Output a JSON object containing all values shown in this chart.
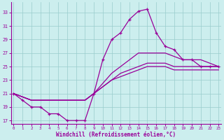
{
  "xlabel": "Windchill (Refroidissement éolien,°C)",
  "hours": [
    0,
    1,
    2,
    3,
    4,
    5,
    6,
    7,
    8,
    9,
    10,
    11,
    12,
    13,
    14,
    15,
    16,
    17,
    18,
    19,
    20,
    21,
    22,
    23
  ],
  "line_main": [
    21,
    20,
    19,
    19,
    18,
    18,
    17,
    17,
    17,
    21,
    26,
    29,
    30,
    32,
    33.2,
    33.5,
    30,
    28,
    27.5,
    26,
    26,
    25,
    25,
    25
  ],
  "line_smooth_hi": [
    21,
    20.5,
    20,
    20,
    20,
    20,
    20,
    20,
    20,
    21,
    22.5,
    24,
    25,
    26,
    27,
    27,
    27,
    27,
    26.5,
    26,
    26,
    26,
    25.5,
    25
  ],
  "line_smooth_mid": [
    21,
    20.5,
    20,
    20,
    20,
    20,
    20,
    20,
    20,
    21,
    22,
    23,
    24,
    24.5,
    25,
    25.5,
    25.5,
    25.5,
    25,
    25,
    25,
    25,
    25,
    25
  ],
  "line_smooth_lo": [
    21,
    20.5,
    20,
    20,
    20,
    20,
    20,
    20,
    20,
    21,
    22,
    23,
    23.5,
    24,
    24.5,
    25,
    25,
    25,
    24.5,
    24.5,
    24.5,
    24.5,
    24.5,
    24.5
  ],
  "ylim": [
    16.5,
    34.5
  ],
  "yticks": [
    17,
    19,
    21,
    23,
    25,
    27,
    29,
    31,
    33
  ],
  "xticks": [
    0,
    1,
    2,
    3,
    4,
    5,
    6,
    7,
    8,
    9,
    10,
    11,
    12,
    13,
    14,
    15,
    16,
    17,
    18,
    19,
    20,
    21,
    22,
    23
  ],
  "line_color": "#990099",
  "bg_color": "#cceeee",
  "grid_color": "#99cccc",
  "figsize": [
    3.2,
    2.0
  ],
  "dpi": 100
}
